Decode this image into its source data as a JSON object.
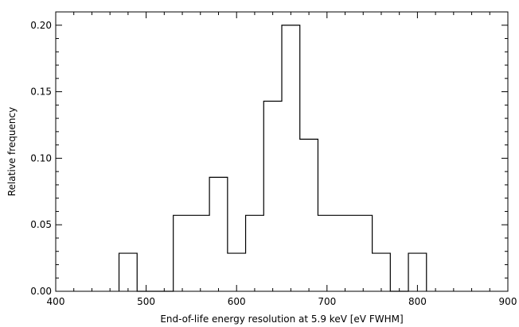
{
  "chart_data": {
    "type": "bar",
    "style": "step-histogram",
    "xlabel": "End-of-life energy resolution at 5.9 keV [eV FWHM]",
    "ylabel": "Relative frequency",
    "xlim": [
      400,
      900
    ],
    "ylim": [
      0,
      0.21
    ],
    "xticks": [
      400,
      500,
      600,
      700,
      800,
      900
    ],
    "xtick_labels": [
      "400",
      "500",
      "600",
      "700",
      "800",
      "900"
    ],
    "yticks": [
      0.0,
      0.05,
      0.1,
      0.15,
      0.2
    ],
    "ytick_labels": [
      "0.00",
      "0.05",
      "0.10",
      "0.15",
      "0.20"
    ],
    "bin_width": 20,
    "bins": [
      {
        "x0": 470,
        "x1": 490,
        "value": 0.0286
      },
      {
        "x0": 490,
        "x1": 510,
        "value": 0.0
      },
      {
        "x0": 510,
        "x1": 530,
        "value": 0.0
      },
      {
        "x0": 530,
        "x1": 550,
        "value": 0.0571
      },
      {
        "x0": 550,
        "x1": 570,
        "value": 0.0571
      },
      {
        "x0": 570,
        "x1": 590,
        "value": 0.0857
      },
      {
        "x0": 590,
        "x1": 610,
        "value": 0.0286
      },
      {
        "x0": 610,
        "x1": 630,
        "value": 0.0571
      },
      {
        "x0": 630,
        "x1": 650,
        "value": 0.1429
      },
      {
        "x0": 650,
        "x1": 670,
        "value": 0.2
      },
      {
        "x0": 670,
        "x1": 690,
        "value": 0.1143
      },
      {
        "x0": 690,
        "x1": 710,
        "value": 0.0571
      },
      {
        "x0": 710,
        "x1": 730,
        "value": 0.0571
      },
      {
        "x0": 730,
        "x1": 750,
        "value": 0.0571
      },
      {
        "x0": 750,
        "x1": 770,
        "value": 0.0286
      },
      {
        "x0": 770,
        "x1": 790,
        "value": 0.0
      },
      {
        "x0": 790,
        "x1": 810,
        "value": 0.0286
      }
    ],
    "grid": false,
    "legend": "none"
  }
}
